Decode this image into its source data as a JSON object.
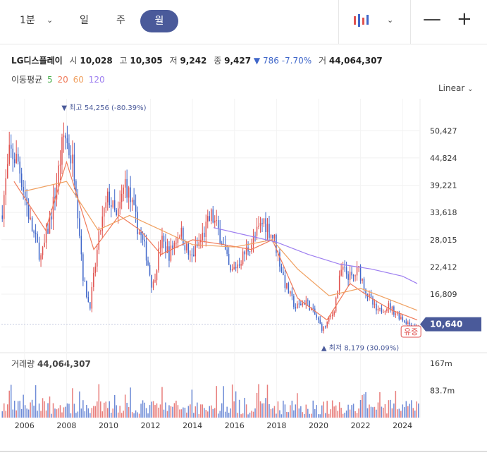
{
  "toolbar": {
    "tf_1min": "1분",
    "tf_day": "일",
    "tf_week": "주",
    "tf_month": "월"
  },
  "info": {
    "name": "LG디스플레이",
    "open_label": "시",
    "open": "10,028",
    "high_label": "고",
    "high": "10,305",
    "low_label": "저",
    "low": "9,242",
    "close_label": "종",
    "close": "9,427",
    "change_arrow": "▼",
    "change": "786",
    "change_pct": "-7.70%",
    "volume_label": "거",
    "volume": "44,064,307"
  },
  "ma": {
    "label": "이동평균",
    "p5": "5",
    "p20": "20",
    "p60": "60",
    "p120": "120",
    "c5": "#4caf50",
    "c20": "#f07a5a",
    "c60": "#f0a060",
    "c120": "#9d7ef0"
  },
  "scale_mode": "Linear",
  "volume_panel": {
    "label": "거래량",
    "value": "44,064,307"
  },
  "colors": {
    "up": "#e0524f",
    "down": "#3f66c9",
    "accent": "#4a5a9a"
  },
  "chart_data": {
    "type": "candlestick",
    "y_ticks": [
      "50,427",
      "44,824",
      "39,221",
      "33,618",
      "28,015",
      "22,412",
      "16,809"
    ],
    "y_tick_values": [
      50427,
      44824,
      39221,
      33618,
      28015,
      22412,
      16809
    ],
    "ylim": [
      5500,
      57000
    ],
    "x_ticks": [
      "2006",
      "2008",
      "2010",
      "2012",
      "2014",
      "2016",
      "2018",
      "2020",
      "2022",
      "2024"
    ],
    "x_tick_values": [
      2006,
      2008,
      2010,
      2012,
      2014,
      2016,
      2018,
      2020,
      2022,
      2024
    ],
    "xlim": [
      2004.9,
      2024.8
    ],
    "current_price": "10,640",
    "current_price_value": 10640,
    "max_annotation": {
      "arrow": "▼",
      "label": "최고",
      "value": "54,256",
      "pct": "(-80.39%)",
      "x": 2007.9,
      "y": 54256
    },
    "min_annotation": {
      "arrow": "▲",
      "label": "최저",
      "value": "8,179",
      "pct": "(30.09%)",
      "x": 2020.2,
      "y": 8179
    },
    "event_badge": {
      "label": "유증",
      "x": 2024.0
    },
    "volume_ticks": [
      "167m",
      "83.7m"
    ],
    "volume_tick_values": [
      167,
      83.7
    ],
    "volume_max": 200,
    "anchors": [
      [
        2004.9,
        33000
      ],
      [
        2005.3,
        46000
      ],
      [
        2005.7,
        44000
      ],
      [
        2006.3,
        31000
      ],
      [
        2006.8,
        24000
      ],
      [
        2007.4,
        36000
      ],
      [
        2007.9,
        50000
      ],
      [
        2008.4,
        42000
      ],
      [
        2008.8,
        20000
      ],
      [
        2009.1,
        14000
      ],
      [
        2009.6,
        30000
      ],
      [
        2010.0,
        37000
      ],
      [
        2010.4,
        32000
      ],
      [
        2010.8,
        40000
      ],
      [
        2011.3,
        32000
      ],
      [
        2011.8,
        25000
      ],
      [
        2012.1,
        18000
      ],
      [
        2012.5,
        28000
      ],
      [
        2012.9,
        25000
      ],
      [
        2013.4,
        30000
      ],
      [
        2013.9,
        24000
      ],
      [
        2014.4,
        28000
      ],
      [
        2014.9,
        33000
      ],
      [
        2015.4,
        28000
      ],
      [
        2015.8,
        21000
      ],
      [
        2016.3,
        24000
      ],
      [
        2016.9,
        28000
      ],
      [
        2017.4,
        32000
      ],
      [
        2017.9,
        28000
      ],
      [
        2018.4,
        19000
      ],
      [
        2018.9,
        14000
      ],
      [
        2019.4,
        15500
      ],
      [
        2019.9,
        12000
      ],
      [
        2020.2,
        9500
      ],
      [
        2020.7,
        13000
      ],
      [
        2021.1,
        22000
      ],
      [
        2021.6,
        20000
      ],
      [
        2021.9,
        22000
      ],
      [
        2022.3,
        17000
      ],
      [
        2022.8,
        13000
      ],
      [
        2023.3,
        14500
      ],
      [
        2023.8,
        12500
      ],
      [
        2024.2,
        11000
      ],
      [
        2024.6,
        10000
      ],
      [
        2024.8,
        9800
      ]
    ],
    "ma_lines": {
      "ma20": [
        [
          2005.5,
          40000
        ],
        [
          2007.0,
          30000
        ],
        [
          2008.0,
          44000
        ],
        [
          2009.3,
          26000
        ],
        [
          2010.5,
          33000
        ],
        [
          2011.5,
          30000
        ],
        [
          2012.5,
          25000
        ],
        [
          2014.0,
          28000
        ],
        [
          2015.5,
          27000
        ],
        [
          2016.8,
          26000
        ],
        [
          2017.8,
          28000
        ],
        [
          2019.0,
          16000
        ],
        [
          2020.4,
          11500
        ],
        [
          2021.5,
          19000
        ],
        [
          2022.5,
          16000
        ],
        [
          2023.5,
          13500
        ],
        [
          2024.7,
          11500
        ]
      ],
      "ma60": [
        [
          2006.0,
          38000
        ],
        [
          2008.0,
          40000
        ],
        [
          2009.5,
          30000
        ],
        [
          2011.0,
          33000
        ],
        [
          2012.5,
          30000
        ],
        [
          2014.0,
          27000
        ],
        [
          2016.0,
          26500
        ],
        [
          2017.8,
          28000
        ],
        [
          2019.0,
          22000
        ],
        [
          2020.5,
          16500
        ],
        [
          2022.0,
          18000
        ],
        [
          2023.5,
          15500
        ],
        [
          2024.7,
          13500
        ]
      ],
      "ma120": [
        [
          2015.0,
          30500
        ],
        [
          2016.5,
          29000
        ],
        [
          2018.0,
          27500
        ],
        [
          2019.5,
          25000
        ],
        [
          2021.0,
          23000
        ],
        [
          2022.5,
          22000
        ],
        [
          2024.0,
          20500
        ],
        [
          2024.7,
          19000
        ]
      ]
    }
  }
}
